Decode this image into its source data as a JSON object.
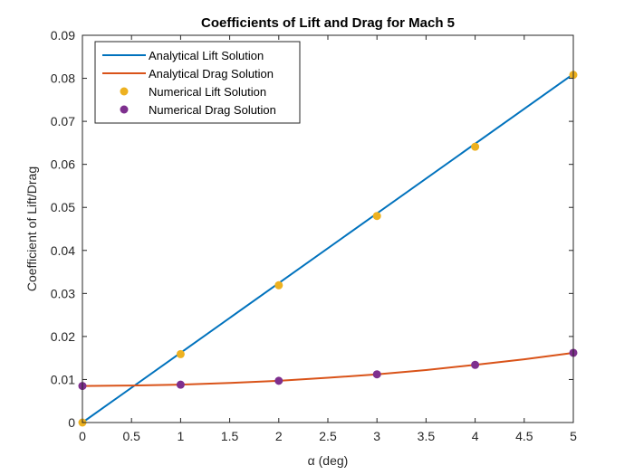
{
  "chart_data": {
    "type": "line",
    "title": "Coefficients of Lift and Drag for Mach 5",
    "xlabel": "α (deg)",
    "ylabel": "Coefficient of Lift/Drag",
    "xlim": [
      0,
      5
    ],
    "ylim": [
      0,
      0.09
    ],
    "xticks": [
      0,
      0.5,
      1,
      1.5,
      2,
      2.5,
      3,
      3.5,
      4,
      4.5,
      5
    ],
    "xtick_labels": [
      "0",
      "0.5",
      "1",
      "1.5",
      "2",
      "2.5",
      "3",
      "3.5",
      "4",
      "4.5",
      "5"
    ],
    "yticks": [
      0,
      0.01,
      0.02,
      0.03,
      0.04,
      0.05,
      0.06,
      0.07,
      0.08,
      0.09
    ],
    "ytick_labels": [
      "0",
      "0.01",
      "0.02",
      "0.03",
      "0.04",
      "0.05",
      "0.06",
      "0.07",
      "0.08",
      "0.09"
    ],
    "grid": false,
    "legend_position": "top-left",
    "series": [
      {
        "name": "Analytical Lift Solution",
        "kind": "line",
        "color": "#0072BD",
        "x": [
          0,
          5
        ],
        "y": [
          0,
          0.081
        ]
      },
      {
        "name": "Analytical Drag Solution",
        "kind": "line",
        "color": "#D95319",
        "x": [
          0,
          0.5,
          1,
          1.5,
          2,
          2.5,
          3,
          3.5,
          4,
          4.5,
          5
        ],
        "y": [
          0.0085,
          0.0086,
          0.0088,
          0.0092,
          0.0097,
          0.0104,
          0.0112,
          0.0122,
          0.0134,
          0.0147,
          0.0162
        ]
      },
      {
        "name": "Numerical Lift Solution",
        "kind": "scatter",
        "color": "#EDB120",
        "x": [
          0,
          1,
          2,
          3,
          4,
          5
        ],
        "y": [
          0,
          0.0159,
          0.0319,
          0.048,
          0.0641,
          0.0808
        ]
      },
      {
        "name": "Numerical Drag Solution",
        "kind": "scatter",
        "color": "#7E2F8E",
        "x": [
          0,
          1,
          2,
          3,
          4,
          5
        ],
        "y": [
          0.0085,
          0.0088,
          0.0097,
          0.0112,
          0.0134,
          0.0162
        ]
      }
    ]
  }
}
